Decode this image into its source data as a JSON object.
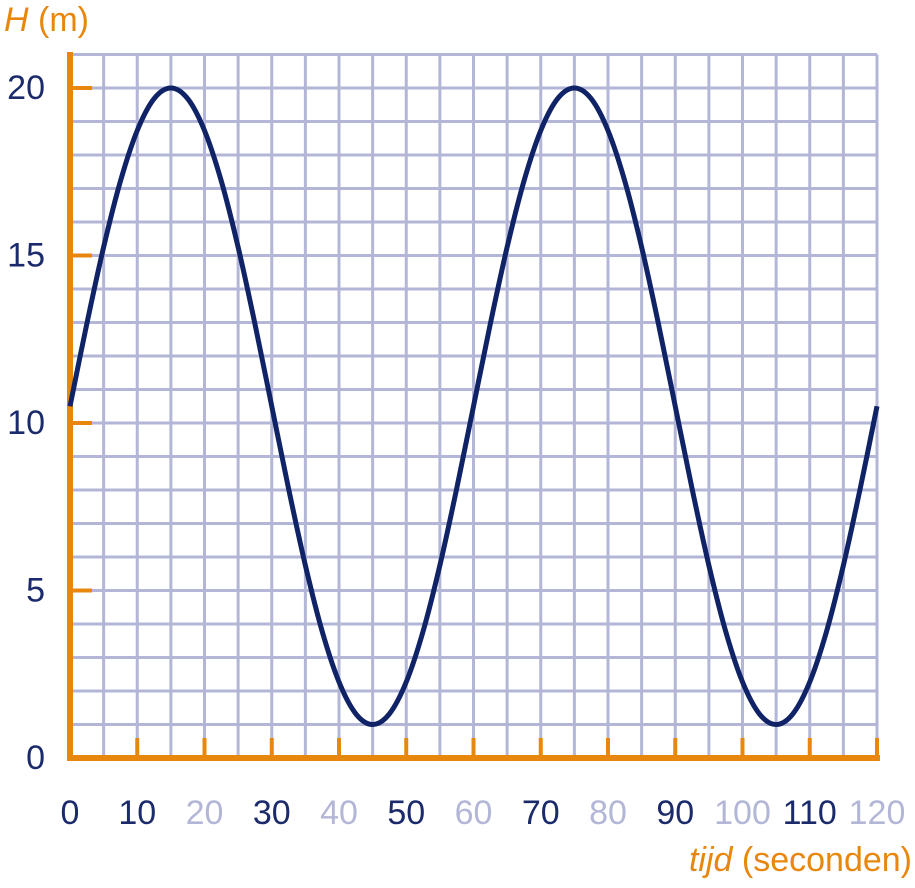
{
  "chart_data": {
    "type": "line",
    "ylabel_var": "H",
    "ylabel_unit": "(m)",
    "xlabel_var": "tijd",
    "xlabel_unit": "(seconden)",
    "xlim": [
      0,
      120
    ],
    "ylim": [
      0,
      21
    ],
    "xticks": [
      0,
      10,
      20,
      30,
      40,
      50,
      60,
      70,
      80,
      90,
      100,
      110,
      120
    ],
    "xtick_label_colors": [
      "#1b2a6b",
      "#1b2a6b",
      "#b3b6d6",
      "#1b2a6b",
      "#b3b6d6",
      "#1b2a6b",
      "#b3b6d6",
      "#1b2a6b",
      "#b3b6d6",
      "#1b2a6b",
      "#b3b6d6",
      "#1b2a6b",
      "#b3b6d6"
    ],
    "yticks": [
      0,
      5,
      10,
      15,
      20
    ],
    "xgrid": [
      0,
      5,
      10,
      15,
      20,
      25,
      30,
      35,
      40,
      45,
      50,
      55,
      60,
      65,
      70,
      75,
      80,
      85,
      90,
      95,
      100,
      105,
      110,
      115,
      120
    ],
    "ygrid": [
      0,
      1,
      2,
      3,
      4,
      5,
      6,
      7,
      8,
      9,
      10,
      11,
      12,
      13,
      14,
      15,
      16,
      17,
      18,
      19,
      20,
      21
    ],
    "grid": true,
    "grid_color": "#b3b6d6",
    "axis_color": "#e8870e",
    "label_color": "#1b2a6b",
    "series": [
      {
        "color": "#0f2366",
        "x": [
          0,
          2.5,
          5,
          7.5,
          10,
          12.5,
          15,
          17.5,
          20,
          22.5,
          25,
          27.5,
          30,
          32.5,
          35,
          37.5,
          40,
          42.5,
          45,
          47.5,
          50,
          52.5,
          55,
          57.5,
          60,
          62.5,
          65,
          67.5,
          70,
          72.5,
          75,
          77.5,
          80,
          82.5,
          85,
          87.5,
          90,
          92.5,
          95,
          97.5,
          100,
          102.5,
          105,
          107.5,
          110,
          112.5,
          115,
          117.5,
          120
        ],
        "values": [
          10.5,
          12.96,
          15.25,
          17.22,
          18.73,
          19.68,
          20,
          19.68,
          18.73,
          17.22,
          15.25,
          12.96,
          10.5,
          8.04,
          5.75,
          3.78,
          2.27,
          1.32,
          1,
          1.32,
          2.27,
          3.78,
          5.75,
          8.04,
          10.5,
          12.96,
          15.25,
          17.22,
          18.73,
          19.68,
          20,
          19.68,
          18.73,
          17.22,
          15.25,
          12.96,
          10.5,
          8.04,
          5.75,
          3.78,
          2.27,
          1.32,
          1,
          1.32,
          2.27,
          3.78,
          5.75,
          8.04,
          10.5
        ]
      }
    ]
  }
}
